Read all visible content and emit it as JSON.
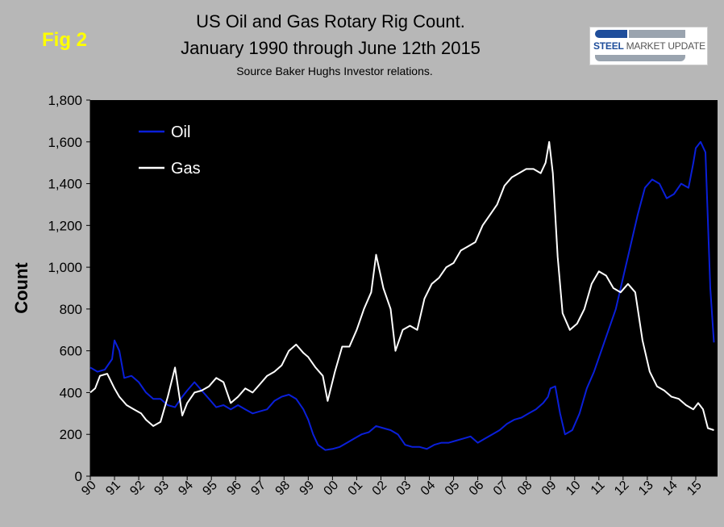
{
  "header": {
    "fig_label": "Fig 2",
    "title_line1": "US Oil and Gas Rotary Rig Count.",
    "title_line2": "January 1990 through June 12th 2015",
    "subtitle": "Source Baker Hughs Investor relations."
  },
  "logo": {
    "word1": "STEEL",
    "word2": "MARKET UPDATE"
  },
  "colors": {
    "plot_bg": "#000000",
    "oil": "#0a1fd9",
    "gas": "#ffffff",
    "page_bg": "#b7b7b7"
  },
  "chart_data": {
    "type": "line",
    "title": "US Oil and Gas Rotary Rig Count. January 1990 through June 12th 2015",
    "subtitle": "Source Baker Hughs Investor relations.",
    "xlabel": "",
    "ylabel": "Count",
    "ylim": [
      0,
      1800
    ],
    "xlim": [
      1990,
      2015.9
    ],
    "yticks": [
      0,
      200,
      400,
      600,
      800,
      1000,
      1200,
      1400,
      1600,
      1800
    ],
    "ytick_labels": [
      "0",
      "200",
      "400",
      "600",
      "800",
      "1,000",
      "1,200",
      "1,400",
      "1,600",
      "1,800"
    ],
    "xtick_values": [
      1990,
      1991,
      1992,
      1993,
      1994,
      1995,
      1996,
      1997,
      1998,
      1999,
      2000,
      2001,
      2002,
      2003,
      2004,
      2005,
      2006,
      2007,
      2008,
      2009,
      2010,
      2011,
      2012,
      2013,
      2014,
      2015
    ],
    "xtick_labels": [
      "90",
      "91",
      "92",
      "93",
      "94",
      "95",
      "96",
      "97",
      "98",
      "99",
      "00",
      "01",
      "02",
      "03",
      "04",
      "05",
      "06",
      "07",
      "08",
      "09",
      "10",
      "11",
      "12",
      "13",
      "14",
      "15"
    ],
    "grid": false,
    "legend": "top-left",
    "series": [
      {
        "name": "Oil",
        "color": "#0a1fd9",
        "x": [
          1990.0,
          1990.3,
          1990.6,
          1990.9,
          1991.0,
          1991.2,
          1991.4,
          1991.7,
          1992.0,
          1992.3,
          1992.6,
          1992.9,
          1993.2,
          1993.5,
          1993.8,
          1994.0,
          1994.3,
          1994.6,
          1994.9,
          1995.2,
          1995.5,
          1995.8,
          1996.1,
          1996.4,
          1996.7,
          1997.0,
          1997.3,
          1997.6,
          1997.9,
          1998.2,
          1998.5,
          1998.8,
          1999.0,
          1999.2,
          1999.4,
          1999.7,
          2000.0,
          2000.3,
          2000.6,
          2000.9,
          2001.2,
          2001.5,
          2001.8,
          2002.1,
          2002.4,
          2002.7,
          2003.0,
          2003.3,
          2003.6,
          2003.9,
          2004.2,
          2004.5,
          2004.8,
          2005.1,
          2005.4,
          2005.7,
          2006.0,
          2006.3,
          2006.6,
          2006.9,
          2007.2,
          2007.5,
          2007.8,
          2008.1,
          2008.4,
          2008.7,
          2008.9,
          2009.0,
          2009.2,
          2009.4,
          2009.6,
          2009.9,
          2010.2,
          2010.5,
          2010.8,
          2011.1,
          2011.4,
          2011.7,
          2012.0,
          2012.3,
          2012.6,
          2012.9,
          2013.2,
          2013.5,
          2013.8,
          2014.1,
          2014.4,
          2014.7,
          2014.9,
          2015.0,
          2015.2,
          2015.4,
          2015.6,
          2015.75
        ],
        "y": [
          520,
          500,
          510,
          560,
          650,
          600,
          470,
          480,
          450,
          400,
          370,
          370,
          340,
          330,
          380,
          410,
          450,
          410,
          370,
          330,
          340,
          320,
          340,
          320,
          300,
          310,
          320,
          360,
          380,
          390,
          370,
          320,
          270,
          200,
          150,
          125,
          130,
          140,
          160,
          180,
          200,
          210,
          240,
          230,
          220,
          200,
          150,
          140,
          140,
          130,
          150,
          160,
          160,
          170,
          180,
          190,
          160,
          180,
          200,
          220,
          250,
          270,
          280,
          300,
          320,
          350,
          380,
          420,
          430,
          300,
          200,
          220,
          300,
          420,
          500,
          600,
          700,
          800,
          950,
          1100,
          1250,
          1380,
          1420,
          1400,
          1330,
          1350,
          1400,
          1380,
          1500,
          1570,
          1600,
          1550,
          900,
          640
        ]
      },
      {
        "name": "Gas",
        "color": "#ffffff",
        "x": [
          1990.0,
          1990.2,
          1990.4,
          1990.7,
          1991.0,
          1991.2,
          1991.5,
          1991.8,
          1992.1,
          1992.3,
          1992.6,
          1992.9,
          1993.2,
          1993.5,
          1993.8,
          1994.0,
          1994.3,
          1994.6,
          1994.9,
          1995.2,
          1995.5,
          1995.8,
          1996.1,
          1996.4,
          1996.7,
          1997.0,
          1997.3,
          1997.6,
          1997.9,
          1998.2,
          1998.5,
          1998.8,
          1999.0,
          1999.3,
          1999.6,
          1999.8,
          2000.1,
          2000.4,
          2000.7,
          2001.0,
          2001.3,
          2001.6,
          2001.8,
          2002.1,
          2002.4,
          2002.6,
          2002.9,
          2003.2,
          2003.5,
          2003.8,
          2004.1,
          2004.4,
          2004.7,
          2005.0,
          2005.3,
          2005.6,
          2005.9,
          2006.2,
          2006.5,
          2006.8,
          2007.1,
          2007.4,
          2007.7,
          2008.0,
          2008.3,
          2008.6,
          2008.8,
          2008.95,
          2009.1,
          2009.3,
          2009.5,
          2009.8,
          2010.1,
          2010.4,
          2010.7,
          2011.0,
          2011.3,
          2011.6,
          2011.9,
          2012.2,
          2012.5,
          2012.8,
          2013.1,
          2013.4,
          2013.7,
          2014.0,
          2014.3,
          2014.6,
          2014.9,
          2015.1,
          2015.3,
          2015.5,
          2015.75
        ],
        "y": [
          400,
          420,
          480,
          490,
          420,
          380,
          340,
          320,
          300,
          270,
          240,
          260,
          380,
          520,
          290,
          350,
          400,
          410,
          430,
          470,
          450,
          350,
          380,
          420,
          400,
          440,
          480,
          500,
          530,
          600,
          630,
          590,
          570,
          520,
          480,
          360,
          500,
          620,
          620,
          700,
          800,
          880,
          1060,
          900,
          800,
          600,
          700,
          720,
          700,
          850,
          920,
          950,
          1000,
          1020,
          1080,
          1100,
          1120,
          1200,
          1250,
          1300,
          1390,
          1430,
          1450,
          1470,
          1470,
          1450,
          1500,
          1600,
          1450,
          1050,
          780,
          700,
          730,
          800,
          920,
          980,
          960,
          900,
          880,
          920,
          880,
          650,
          500,
          430,
          410,
          380,
          370,
          340,
          320,
          350,
          320,
          230,
          220
        ]
      }
    ]
  }
}
